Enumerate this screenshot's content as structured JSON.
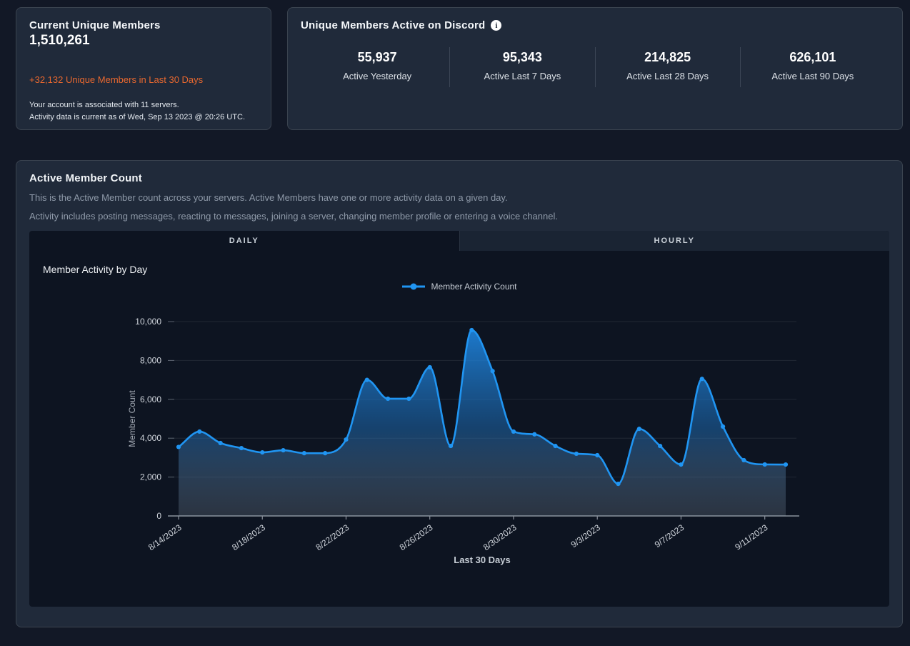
{
  "cards": {
    "unique_members": {
      "title": "Current Unique Members",
      "value": "1,510,261",
      "delta": "+32,132 Unique Members in Last 30 Days",
      "footnote_servers": "Your account is associated with 11 servers.",
      "footnote_updated": "Activity data is current as of Wed, Sep 13 2023 @ 20:26 UTC."
    },
    "active_on_discord": {
      "title": "Unique Members Active on Discord",
      "info_icon": "info-circle",
      "stats": [
        {
          "value": "55,937",
          "label": "Active Yesterday"
        },
        {
          "value": "95,343",
          "label": "Active Last 7 Days"
        },
        {
          "value": "214,825",
          "label": "Active Last 28 Days"
        },
        {
          "value": "626,101",
          "label": "Active Last 90 Days"
        }
      ]
    },
    "active_member_count": {
      "title": "Active Member Count",
      "description1": "This is the Active Member count across your servers. Active Members have one or more activity data on a given day.",
      "description2": "Activity includes posting messages, reacting to messages, joining a server, changing member profile or entering a voice channel.",
      "tabs": [
        {
          "label": "DAILY",
          "active": true
        },
        {
          "label": "HOURLY",
          "active": false
        }
      ],
      "chart_title": "Member Activity by Day"
    }
  },
  "chart_data": {
    "type": "area",
    "title": "Member Activity by Day",
    "xlabel": "Last 30 Days",
    "ylabel": "Member Count",
    "ylim": [
      0,
      10000
    ],
    "y_ticks": [
      0,
      2000,
      4000,
      6000,
      8000,
      10000
    ],
    "grid": true,
    "legend_position": "top",
    "x": [
      "8/14/2023",
      "8/15/2023",
      "8/16/2023",
      "8/17/2023",
      "8/18/2023",
      "8/19/2023",
      "8/20/2023",
      "8/21/2023",
      "8/22/2023",
      "8/23/2023",
      "8/24/2023",
      "8/25/2023",
      "8/26/2023",
      "8/27/2023",
      "8/28/2023",
      "8/29/2023",
      "8/30/2023",
      "8/31/2023",
      "9/1/2023",
      "9/2/2023",
      "9/3/2023",
      "9/4/2023",
      "9/5/2023",
      "9/6/2023",
      "9/7/2023",
      "9/8/2023",
      "9/9/2023",
      "9/10/2023",
      "9/11/2023",
      "9/12/2023"
    ],
    "x_tick_labels": [
      "8/14/2023",
      "8/18/2023",
      "8/22/2023",
      "8/26/2023",
      "8/30/2023",
      "9/3/2023",
      "9/7/2023",
      "9/11/2023"
    ],
    "x_tick_every": 4,
    "series": [
      {
        "name": "Member Activity Count",
        "values": [
          3550,
          4340,
          3750,
          3490,
          3270,
          3380,
          3230,
          3230,
          3930,
          7000,
          6030,
          6030,
          7650,
          3600,
          9560,
          7450,
          4340,
          4200,
          3600,
          3200,
          3125,
          1650,
          4480,
          3600,
          2645,
          7050,
          4600,
          2870,
          2650,
          2645
        ]
      }
    ],
    "line_color": "#2095f2"
  },
  "colors": {
    "page_bg": "#121826",
    "card_bg": "#202a3a",
    "panel_bg": "#0d1421",
    "accent_blue": "#2095f2",
    "delta_orange": "#e8682f"
  }
}
